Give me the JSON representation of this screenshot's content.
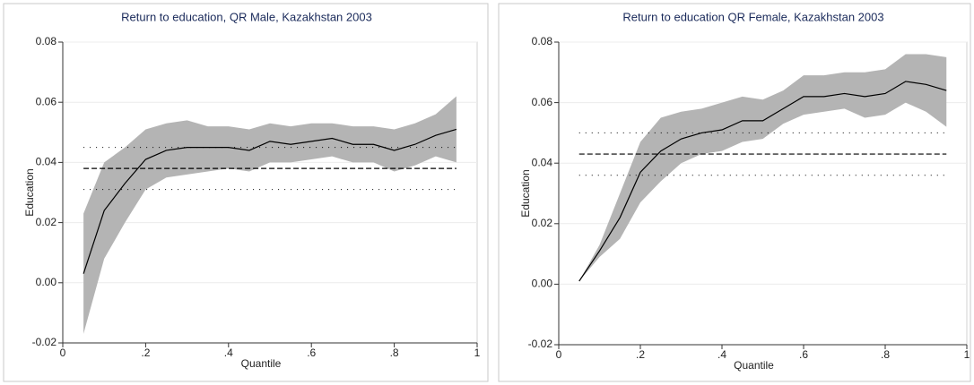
{
  "chart_data": [
    {
      "type": "line",
      "title": "Return to education, QR Male, Kazakhstan 2003",
      "xlabel": "Quantile",
      "ylabel": "Education",
      "x": [
        0.05,
        0.1,
        0.15,
        0.2,
        0.25,
        0.3,
        0.35,
        0.4,
        0.45,
        0.5,
        0.55,
        0.6,
        0.65,
        0.7,
        0.75,
        0.8,
        0.85,
        0.9,
        0.95
      ],
      "values": [
        0.003,
        0.024,
        0.033,
        0.041,
        0.044,
        0.045,
        0.045,
        0.045,
        0.044,
        0.047,
        0.046,
        0.047,
        0.048,
        0.046,
        0.046,
        0.044,
        0.046,
        0.049,
        0.051
      ],
      "upper": [
        0.023,
        0.04,
        0.045,
        0.051,
        0.053,
        0.054,
        0.052,
        0.052,
        0.051,
        0.053,
        0.052,
        0.053,
        0.053,
        0.052,
        0.052,
        0.051,
        0.053,
        0.056,
        0.062
      ],
      "lower": [
        -0.017,
        0.008,
        0.02,
        0.031,
        0.035,
        0.036,
        0.037,
        0.038,
        0.037,
        0.04,
        0.04,
        0.041,
        0.042,
        0.04,
        0.04,
        0.037,
        0.039,
        0.042,
        0.04
      ],
      "ols": 0.038,
      "ols_lower": 0.031,
      "ols_upper": 0.045,
      "color": "#000000",
      "band_color": "#b4b4b4",
      "xlim": [
        0,
        1
      ],
      "ylim": [
        -0.02,
        0.08
      ],
      "xticks": [
        0,
        {
          "value": 0.2,
          "label": ".2"
        },
        {
          "value": 0.4,
          "label": ".4"
        },
        {
          "value": 0.6,
          "label": ".6"
        },
        {
          "value": 0.8,
          "label": ".8"
        },
        1
      ],
      "yticks": [
        -0.02,
        {
          "value": 0,
          "label": "0.00"
        },
        0.02,
        0.04,
        0.06,
        0.08
      ],
      "grid": true
    },
    {
      "type": "line",
      "title": "Return to education QR Female, Kazakhstan 2003",
      "xlabel": "Quantile",
      "ylabel": "Education",
      "x": [
        0.05,
        0.1,
        0.15,
        0.2,
        0.25,
        0.3,
        0.35,
        0.4,
        0.45,
        0.5,
        0.55,
        0.6,
        0.65,
        0.7,
        0.75,
        0.8,
        0.85,
        0.9,
        0.95
      ],
      "values": [
        0.001,
        0.011,
        0.022,
        0.037,
        0.044,
        0.048,
        0.05,
        0.051,
        0.054,
        0.054,
        0.058,
        0.062,
        0.062,
        0.063,
        0.062,
        0.063,
        0.067,
        0.066,
        0.064
      ],
      "upper": [
        0.001,
        0.013,
        0.03,
        0.047,
        0.055,
        0.057,
        0.058,
        0.06,
        0.062,
        0.061,
        0.064,
        0.069,
        0.069,
        0.07,
        0.07,
        0.071,
        0.076,
        0.076,
        0.075
      ],
      "lower": [
        0.001,
        0.009,
        0.015,
        0.027,
        0.034,
        0.04,
        0.043,
        0.044,
        0.047,
        0.048,
        0.053,
        0.056,
        0.057,
        0.058,
        0.055,
        0.056,
        0.06,
        0.057,
        0.052
      ],
      "ols": 0.043,
      "ols_lower": 0.036,
      "ols_upper": 0.05,
      "color": "#000000",
      "band_color": "#b4b4b4",
      "xlim": [
        0,
        1
      ],
      "ylim": [
        -0.02,
        0.08
      ],
      "xticks": [
        0,
        {
          "value": 0.2,
          "label": ".2"
        },
        {
          "value": 0.4,
          "label": ".4"
        },
        {
          "value": 0.6,
          "label": ".6"
        },
        {
          "value": 0.8,
          "label": ".8"
        },
        1
      ],
      "yticks": [
        -0.02,
        {
          "value": 0,
          "label": "0.00"
        },
        0.02,
        0.04,
        0.06,
        0.08
      ],
      "grid": true
    }
  ]
}
